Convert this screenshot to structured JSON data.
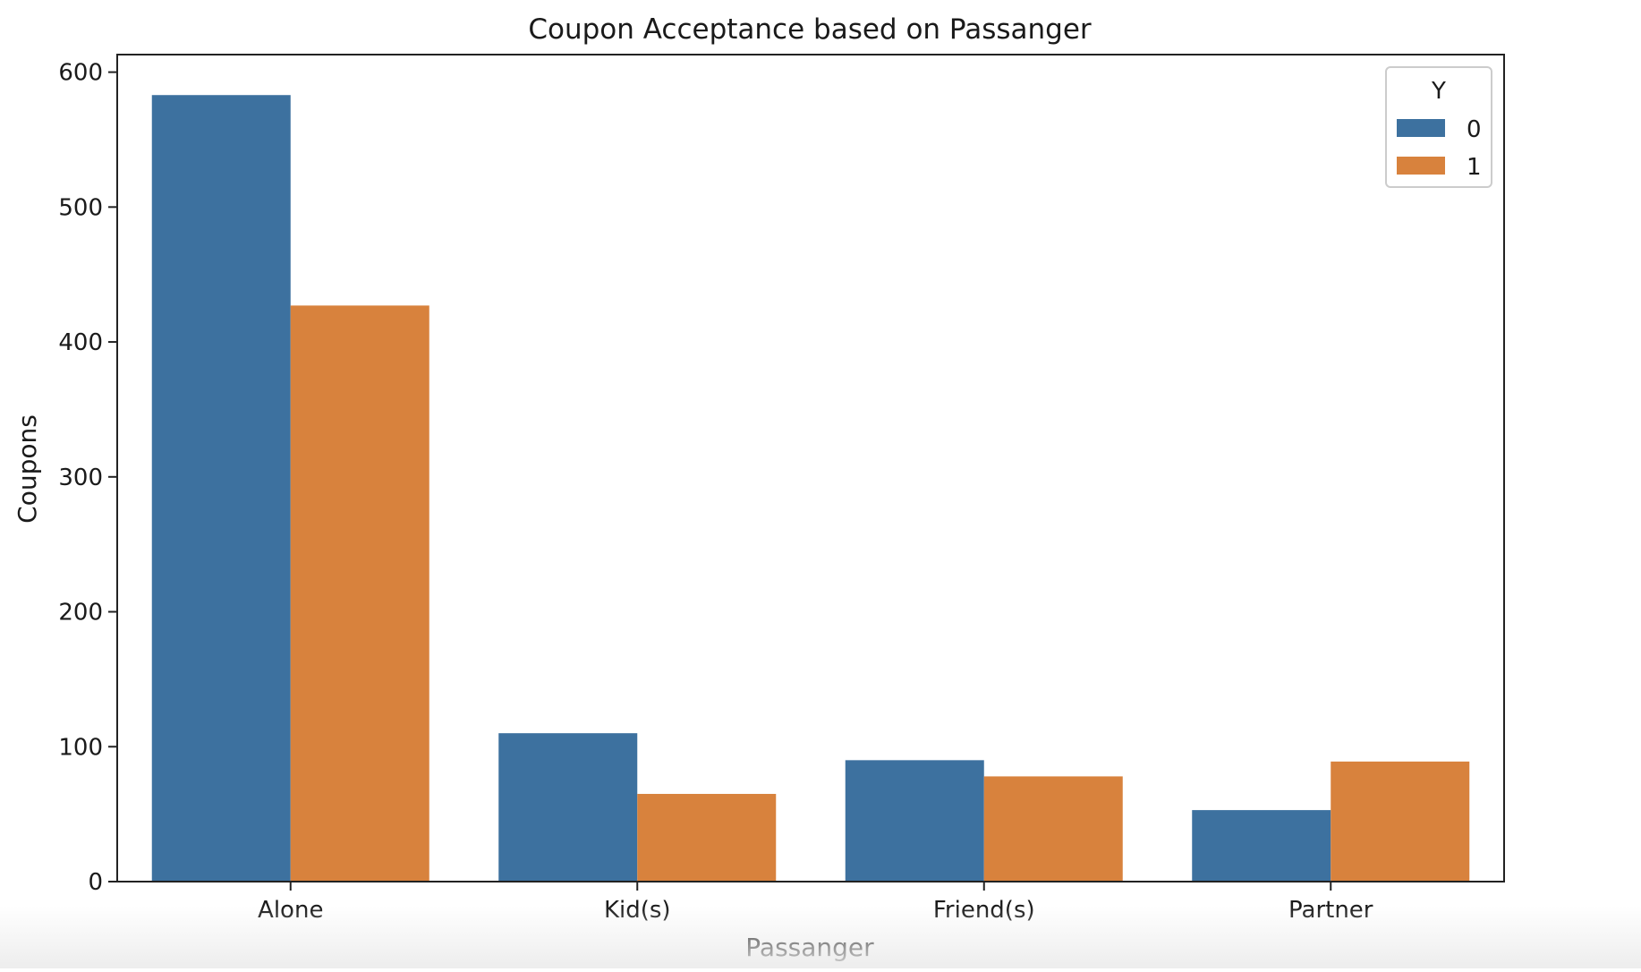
{
  "chart_data": {
    "type": "bar",
    "title": "Coupon Acceptance based on Passanger",
    "xlabel": "Passanger",
    "ylabel": "Coupons",
    "categories": [
      "Alone",
      "Kid(s)",
      "Friend(s)",
      "Partner"
    ],
    "series": [
      {
        "name": "0",
        "values": [
          583,
          110,
          90,
          53
        ],
        "color": "#3d719f"
      },
      {
        "name": "1",
        "values": [
          427,
          65,
          78,
          89
        ],
        "color": "#d8823d"
      }
    ],
    "ylim": [
      0,
      613
    ],
    "yticks": [
      0,
      100,
      200,
      300,
      400,
      500,
      600
    ],
    "grid": false,
    "legend": {
      "title": "Y",
      "placement": "top-right"
    }
  }
}
